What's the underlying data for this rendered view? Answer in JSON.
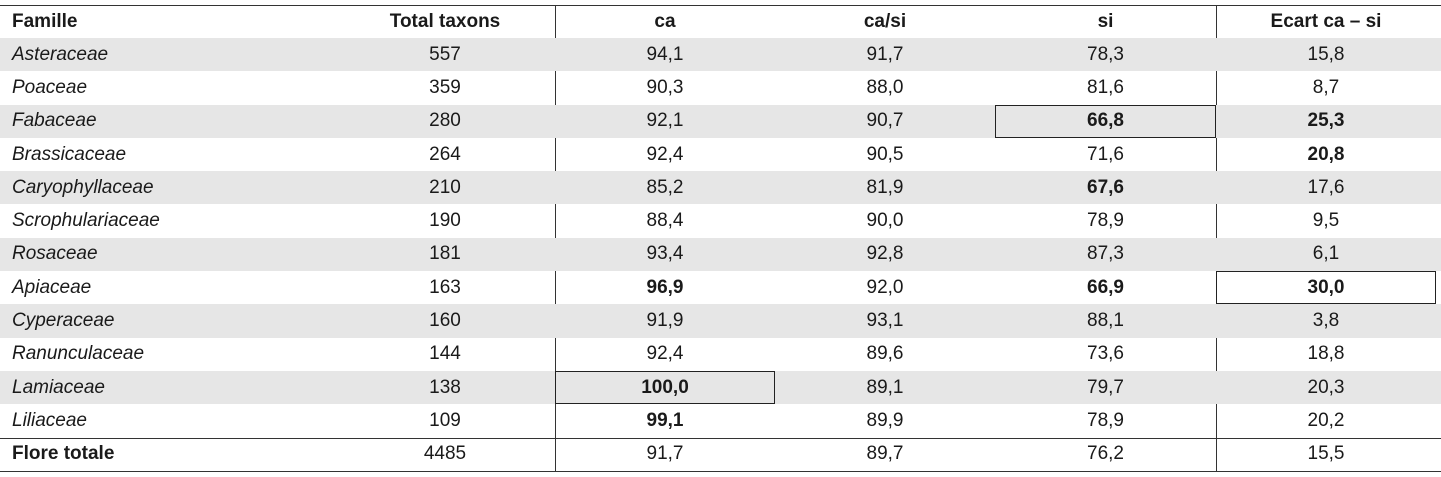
{
  "table": {
    "header": [
      "Famille",
      "Total taxons",
      "ca",
      "ca/si",
      "si",
      "Ecart ca – si"
    ],
    "rows": [
      [
        "Asteraceae",
        "557",
        "94,1",
        "91,7",
        "78,3",
        "15,8"
      ],
      [
        "Poaceae",
        "359",
        "90,3",
        "88,0",
        "81,6",
        "8,7"
      ],
      [
        "Fabaceae",
        "280",
        "92,1",
        "90,7",
        "66,8",
        "25,3"
      ],
      [
        "Brassicaceae",
        "264",
        "92,4",
        "90,5",
        "71,6",
        "20,8"
      ],
      [
        "Caryophyllaceae",
        "210",
        "85,2",
        "81,9",
        "67,6",
        "17,6"
      ],
      [
        "Scrophulariaceae",
        "190",
        "88,4",
        "90,0",
        "78,9",
        "9,5"
      ],
      [
        "Rosaceae",
        "181",
        "93,4",
        "92,8",
        "87,3",
        "6,1"
      ],
      [
        "Apiaceae",
        "163",
        "96,9",
        "92,0",
        "66,9",
        "30,0"
      ],
      [
        "Cyperaceae",
        "160",
        "91,9",
        "93,1",
        "88,1",
        "3,8"
      ],
      [
        "Ranunculaceae",
        "144",
        "92,4",
        "89,6",
        "73,6",
        "18,8"
      ],
      [
        "Lamiaceae",
        "138",
        "100,0",
        "89,1",
        "79,7",
        "20,3"
      ],
      [
        "Liliaceae",
        "109",
        "99,1",
        "89,9",
        "78,9",
        "20,2"
      ]
    ],
    "total": [
      "Flore totale",
      "4485",
      "91,7",
      "89,7",
      "76,2",
      "15,5"
    ]
  }
}
